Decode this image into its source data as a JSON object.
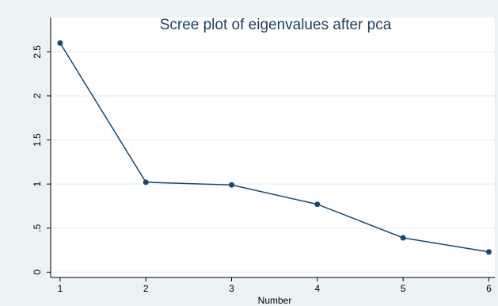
{
  "chart_data": {
    "type": "line",
    "title": "Scree plot of eigenvalues after pca",
    "xlabel": "Number",
    "x": [
      1,
      2,
      3,
      4,
      5,
      6
    ],
    "series": [
      {
        "color": "#1a476f",
        "values": [
          2.6,
          1.02,
          0.99,
          0.77,
          0.39,
          0.23
        ]
      }
    ],
    "xlim": [
      0.89,
      6.07
    ],
    "xticks": [
      1,
      2,
      3,
      4,
      5,
      6
    ],
    "ylim": [
      -0.06,
      2.89
    ],
    "yticks": [
      0,
      {
        "value": 0.5,
        "label": ".5"
      },
      1,
      1.5,
      2,
      2.5
    ],
    "grid": true
  }
}
